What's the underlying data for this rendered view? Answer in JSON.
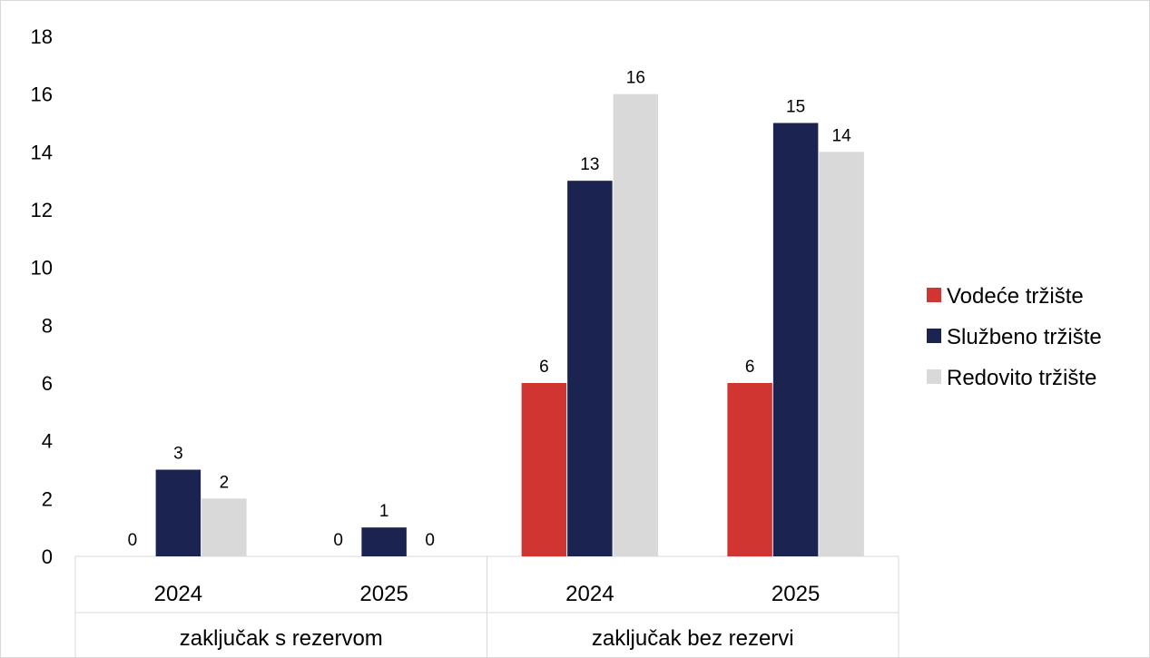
{
  "chart_data": {
    "type": "bar",
    "groups": [
      {
        "label": "zaključak s rezervom",
        "categories": [
          "2024",
          "2025"
        ]
      },
      {
        "label": "zaključak bez rezervi",
        "categories": [
          "2024",
          "2025"
        ]
      }
    ],
    "categories": [
      "2024",
      "2025",
      "2024",
      "2025"
    ],
    "series": [
      {
        "name": "Vodeće tržište",
        "color": "#d13532",
        "values": [
          0,
          0,
          6,
          6
        ]
      },
      {
        "name": "Službeno tržište",
        "color": "#1b2450",
        "values": [
          3,
          1,
          13,
          15
        ]
      },
      {
        "name": "Redovito tržište",
        "color": "#d9d9d9",
        "values": [
          2,
          0,
          16,
          14
        ]
      }
    ],
    "ylim": [
      0,
      18
    ],
    "yticks": [
      0,
      2,
      4,
      6,
      8,
      10,
      12,
      14,
      16,
      18
    ],
    "grid": false,
    "legend": "right",
    "data_labels": true
  }
}
